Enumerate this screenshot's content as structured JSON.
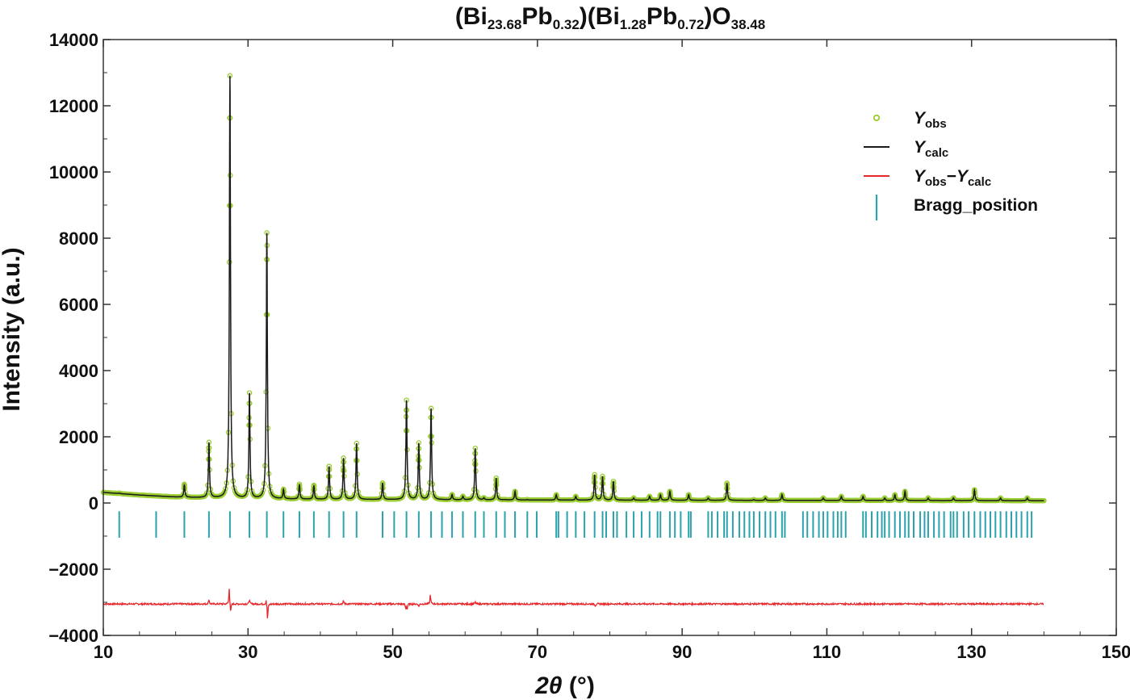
{
  "chart_data": {
    "type": "line",
    "title": {
      "parts": [
        {
          "t": "(Bi",
          "sub": false
        },
        {
          "t": "23.68",
          "sub": true
        },
        {
          "t": "Pb",
          "sub": false
        },
        {
          "t": "0.32",
          "sub": true
        },
        {
          "t": ")(Bi",
          "sub": false
        },
        {
          "t": "1.28",
          "sub": true
        },
        {
          "t": "Pb",
          "sub": false
        },
        {
          "t": "0.72",
          "sub": true
        },
        {
          "t": ")O",
          "sub": false
        },
        {
          "t": "38.48",
          "sub": true
        }
      ]
    },
    "xlabel": {
      "theta": "2θ",
      "unit": " (°)"
    },
    "ylabel": "Intensity (a.u.)",
    "xlim": [
      10,
      150
    ],
    "ylim": [
      -4000,
      14000
    ],
    "xticks": [
      10,
      30,
      50,
      70,
      90,
      110,
      130,
      150
    ],
    "yticks": [
      14000,
      12000,
      10000,
      8000,
      6000,
      4000,
      2000,
      0,
      -2000,
      -4000
    ],
    "ytick_labels": [
      "14000",
      "12000",
      "10000",
      "8000",
      "6000",
      "4000",
      "2000",
      "0",
      "−2000",
      "−4000"
    ],
    "grid": false,
    "legend_position": "top-right",
    "x_range": [
      10,
      140
    ],
    "background": {
      "at_x": [
        10,
        15,
        20,
        30,
        40,
        60,
        80,
        100,
        120,
        140
      ],
      "y": [
        320,
        240,
        180,
        130,
        110,
        95,
        85,
        80,
        75,
        70
      ]
    },
    "peaks": [
      {
        "x": 12.2,
        "y": 300
      },
      {
        "x": 21.2,
        "y": 560
      },
      {
        "x": 24.6,
        "y": 1820
      },
      {
        "x": 27.5,
        "y": 12900
      },
      {
        "x": 30.2,
        "y": 3300
      },
      {
        "x": 32.6,
        "y": 8150
      },
      {
        "x": 34.9,
        "y": 400
      },
      {
        "x": 37.1,
        "y": 560
      },
      {
        "x": 39.1,
        "y": 530
      },
      {
        "x": 41.2,
        "y": 1100
      },
      {
        "x": 43.2,
        "y": 1350
      },
      {
        "x": 45.0,
        "y": 1800
      },
      {
        "x": 48.6,
        "y": 600
      },
      {
        "x": 51.9,
        "y": 3100
      },
      {
        "x": 53.6,
        "y": 1800
      },
      {
        "x": 55.3,
        "y": 2850
      },
      {
        "x": 58.2,
        "y": 250
      },
      {
        "x": 59.7,
        "y": 200
      },
      {
        "x": 61.4,
        "y": 1650
      },
      {
        "x": 62.6,
        "y": 150
      },
      {
        "x": 64.3,
        "y": 750
      },
      {
        "x": 65.5,
        "y": 100
      },
      {
        "x": 66.9,
        "y": 350
      },
      {
        "x": 68.6,
        "y": 100
      },
      {
        "x": 72.6,
        "y": 250
      },
      {
        "x": 75.3,
        "y": 200
      },
      {
        "x": 77.9,
        "y": 850
      },
      {
        "x": 79.0,
        "y": 800
      },
      {
        "x": 80.5,
        "y": 650
      },
      {
        "x": 83.3,
        "y": 150
      },
      {
        "x": 85.5,
        "y": 200
      },
      {
        "x": 87.0,
        "y": 250
      },
      {
        "x": 88.3,
        "y": 350
      },
      {
        "x": 90.9,
        "y": 250
      },
      {
        "x": 93.6,
        "y": 150
      },
      {
        "x": 96.2,
        "y": 600
      },
      {
        "x": 99.9,
        "y": 100
      },
      {
        "x": 101.5,
        "y": 150
      },
      {
        "x": 103.8,
        "y": 250
      },
      {
        "x": 109.5,
        "y": 150
      },
      {
        "x": 112.0,
        "y": 200
      },
      {
        "x": 115.0,
        "y": 200
      },
      {
        "x": 118.0,
        "y": 150
      },
      {
        "x": 119.4,
        "y": 250
      },
      {
        "x": 120.8,
        "y": 350
      },
      {
        "x": 124.0,
        "y": 150
      },
      {
        "x": 127.5,
        "y": 150
      },
      {
        "x": 130.4,
        "y": 400
      },
      {
        "x": 134.0,
        "y": 150
      },
      {
        "x": 137.7,
        "y": 150
      }
    ],
    "bragg_positions": [
      12.2,
      17.3,
      21.2,
      24.6,
      27.5,
      30.2,
      32.6,
      34.9,
      37.1,
      39.1,
      41.2,
      43.2,
      45.0,
      48.6,
      50.2,
      51.9,
      53.6,
      55.3,
      56.8,
      58.2,
      59.7,
      61.4,
      62.6,
      64.3,
      65.5,
      66.9,
      68.6,
      69.9,
      72.6,
      72.9,
      74.1,
      75.3,
      76.5,
      77.9,
      79.0,
      79.5,
      80.5,
      81.0,
      82.3,
      83.3,
      84.4,
      85.5,
      86.6,
      87.0,
      88.3,
      89.0,
      89.8,
      90.9,
      91.2,
      93.6,
      94.1,
      94.9,
      95.8,
      96.2,
      97.0,
      97.9,
      98.6,
      99.3,
      99.9,
      100.7,
      101.5,
      102.2,
      102.9,
      103.8,
      104.2,
      106.7,
      107.3,
      108.1,
      108.9,
      109.5,
      110.1,
      110.9,
      111.5,
      112.0,
      112.6,
      115.0,
      115.4,
      116.2,
      117.0,
      117.6,
      118.0,
      118.6,
      119.4,
      120.1,
      120.8,
      121.3,
      122.0,
      122.9,
      123.5,
      124.0,
      124.8,
      125.5,
      126.2,
      127.1,
      127.5,
      128.0,
      128.9,
      129.6,
      130.4,
      131.2,
      131.9,
      132.6,
      133.3,
      134.0,
      134.8,
      135.5,
      136.2,
      136.9,
      137.7,
      138.3
    ],
    "bragg_tick_range": [
      -250,
      -1050
    ],
    "difference_offset": -3050,
    "difference_spikes": [
      {
        "x": 24.6,
        "y": 150
      },
      {
        "x": 27.4,
        "y": 500
      },
      {
        "x": 27.6,
        "y": -300
      },
      {
        "x": 30.2,
        "y": 150
      },
      {
        "x": 32.5,
        "y": 150
      },
      {
        "x": 32.7,
        "y": -500
      },
      {
        "x": 43.2,
        "y": 100
      },
      {
        "x": 51.8,
        "y": -150
      },
      {
        "x": 52.0,
        "y": -150
      },
      {
        "x": 53.6,
        "y": -80
      },
      {
        "x": 55.2,
        "y": 300
      },
      {
        "x": 61.4,
        "y": 60
      },
      {
        "x": 78.0,
        "y": -60
      }
    ],
    "series": [
      {
        "name": "Yobs",
        "color": "#9acd32",
        "style": "markers"
      },
      {
        "name": "Ycalc",
        "color": "#1a1a1a",
        "style": "line"
      },
      {
        "name": "Yobs−Ycalc",
        "color": "#e8272b",
        "style": "line"
      },
      {
        "name": "Bragg_position",
        "color": "#2ba3ad",
        "style": "ticks"
      }
    ]
  },
  "legend": [
    {
      "key": "yobs",
      "parts": [
        {
          "t": "Y",
          "i": true
        },
        {
          "t": "obs",
          "sub": true
        }
      ],
      "color": "#9acd32",
      "icon": "circle-marker"
    },
    {
      "key": "ycalc",
      "parts": [
        {
          "t": "Y",
          "i": true
        },
        {
          "t": "calc",
          "sub": true
        }
      ],
      "color": "#1a1a1a",
      "icon": "line-segment"
    },
    {
      "key": "ydiff",
      "parts": [
        {
          "t": "Y",
          "i": true
        },
        {
          "t": "obs",
          "sub": true
        },
        {
          "t": "−"
        },
        {
          "t": "Y",
          "i": true
        },
        {
          "t": "calc",
          "sub": true
        }
      ],
      "color": "#e8272b",
      "icon": "line-segment"
    },
    {
      "key": "bragg",
      "parts": [
        {
          "t": "Bragg_position"
        }
      ],
      "color": "#2ba3ad",
      "icon": "vertical-tick"
    }
  ]
}
